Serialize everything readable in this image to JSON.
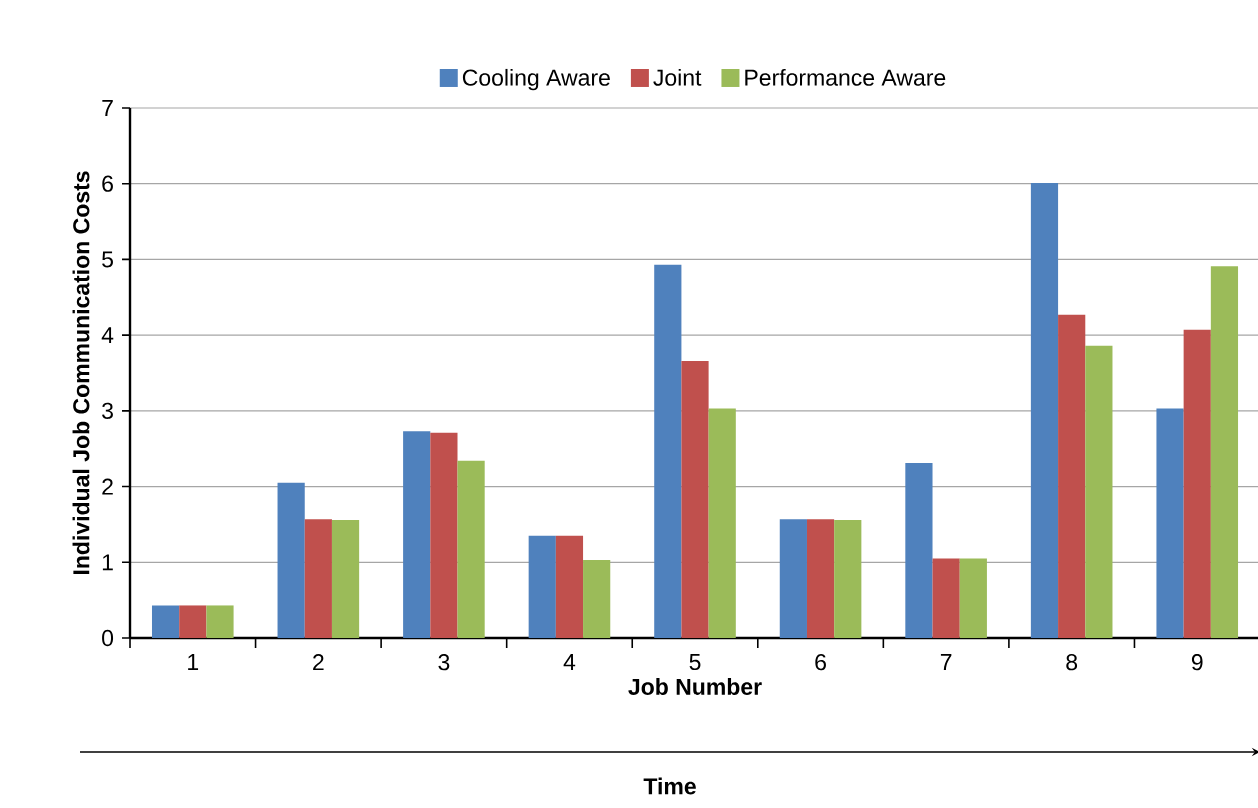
{
  "chart_data": {
    "type": "bar",
    "xlabel": "Job Number",
    "ylabel": "Individual Job Communication Costs",
    "categories": [
      "1",
      "2",
      "3",
      "4",
      "5",
      "6",
      "7",
      "8",
      "9"
    ],
    "series": [
      {
        "name": "Cooling Aware",
        "color": "#4f81bd",
        "values": [
          0.43,
          2.05,
          2.73,
          1.35,
          4.93,
          1.57,
          2.31,
          6.01,
          3.03
        ]
      },
      {
        "name": "Joint",
        "color": "#c0504d",
        "values": [
          0.43,
          1.57,
          2.71,
          1.35,
          3.66,
          1.57,
          1.05,
          4.27,
          4.07
        ]
      },
      {
        "name": "Performance Aware",
        "color": "#9bbb59",
        "values": [
          0.43,
          1.56,
          2.34,
          1.03,
          3.03,
          1.56,
          1.05,
          3.86,
          4.91
        ]
      }
    ],
    "annotations": [
      "Time"
    ],
    "ylim": [
      0,
      7
    ],
    "yticks": [
      0,
      1,
      2,
      3,
      4,
      5,
      6,
      7
    ],
    "grid": "y",
    "legend": "top"
  }
}
